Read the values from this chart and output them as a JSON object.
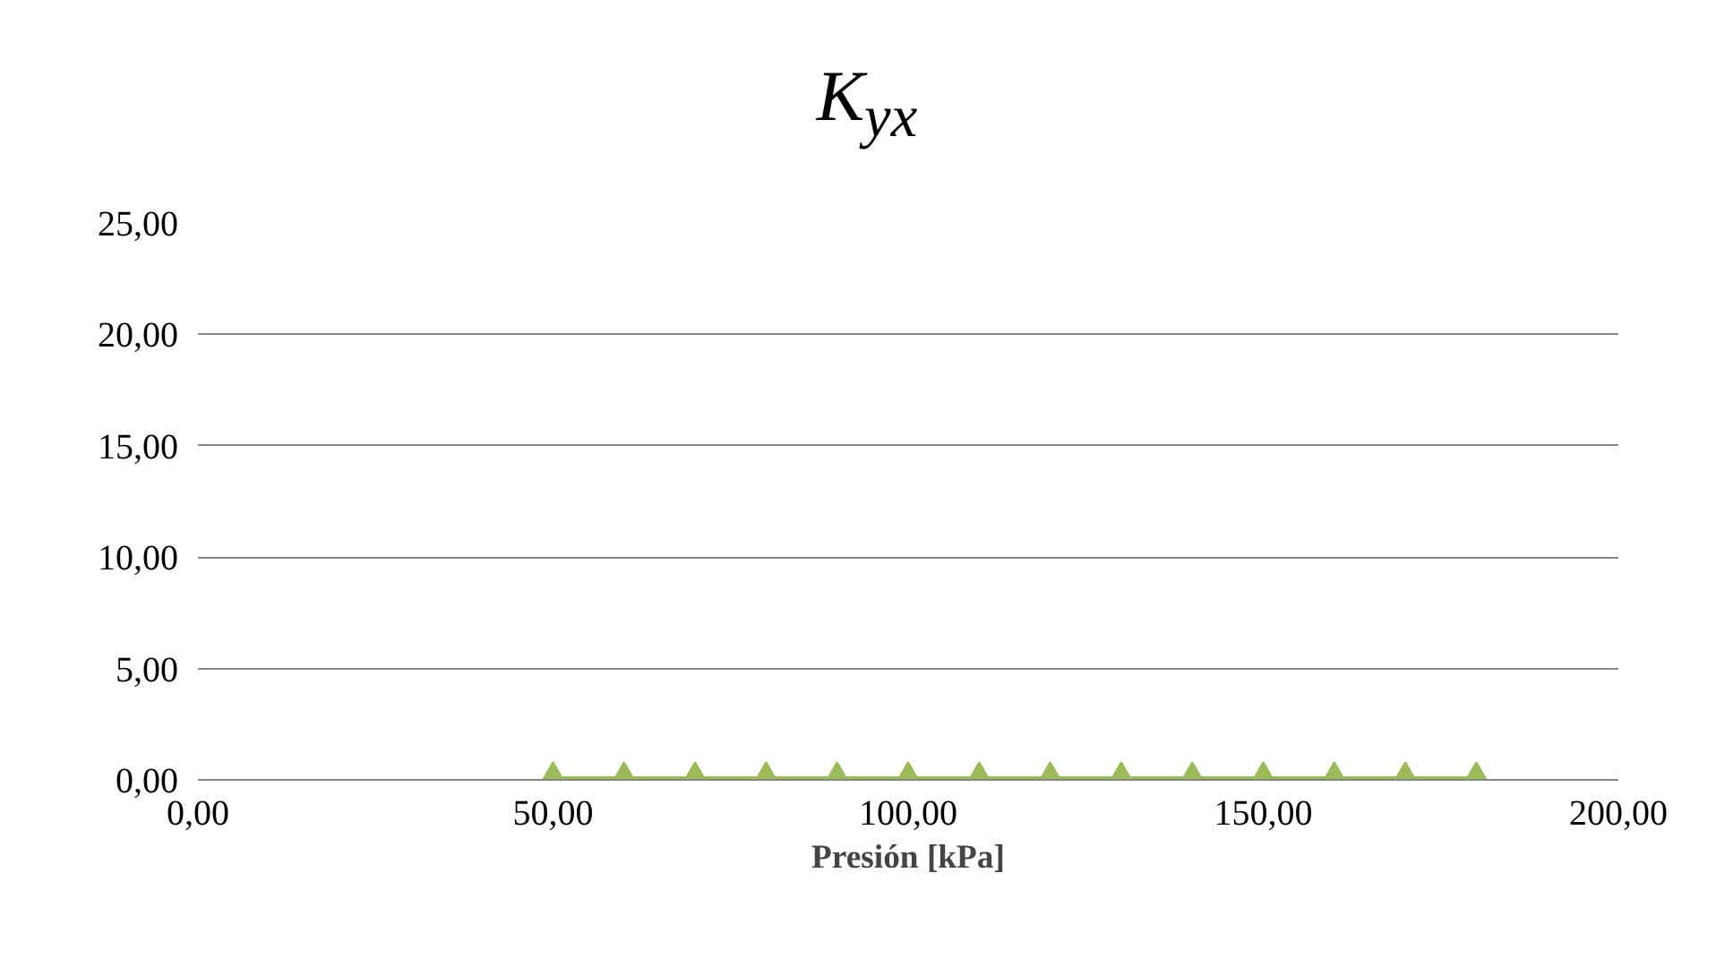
{
  "chart_data": {
    "type": "line",
    "title": "K$_{yx}$",
    "xlabel": "Presión [kPa]",
    "x": [
      50,
      60,
      70,
      80,
      90,
      100,
      110,
      120,
      130,
      140,
      150,
      160,
      170,
      180
    ],
    "series": [
      {
        "color": "#9bbb59",
        "values": [
          0,
          0,
          0,
          0,
          0,
          0,
          0,
          0,
          0,
          0,
          0,
          0,
          0,
          0
        ]
      }
    ],
    "xlim": [
      0,
      200
    ],
    "ylim": [
      0,
      25
    ],
    "xticks": [
      {
        "value": 0,
        "label": "0,00"
      },
      {
        "value": 50,
        "label": "50,00"
      },
      {
        "value": 100,
        "label": "100,00"
      },
      {
        "value": 150,
        "label": "150,00"
      },
      {
        "value": 200,
        "label": "200,00"
      }
    ],
    "yticks": [
      {
        "value": 0,
        "label": "0,00"
      },
      {
        "value": 5,
        "label": "5,00"
      },
      {
        "value": 10,
        "label": "10,00"
      },
      {
        "value": 15,
        "label": "15,00"
      },
      {
        "value": 20,
        "label": "20,00"
      },
      {
        "value": 25,
        "label": "25,00"
      }
    ],
    "grid": "y",
    "marker": "triangle",
    "line_style": "solid"
  }
}
